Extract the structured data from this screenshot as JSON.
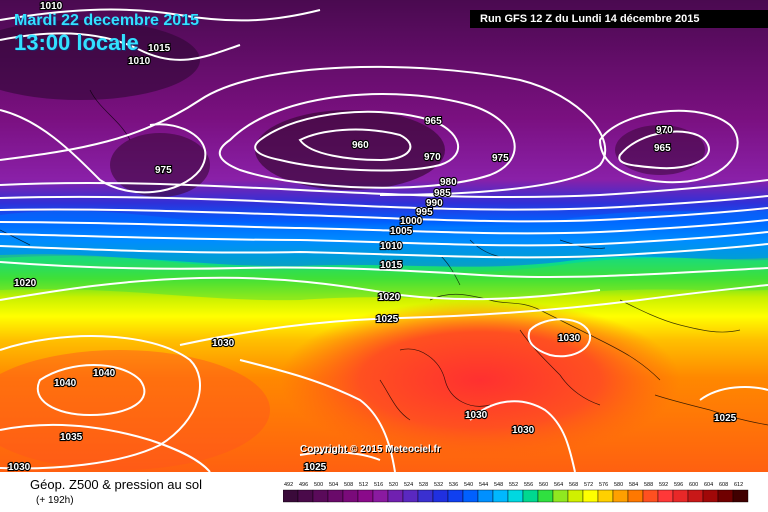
{
  "header": {
    "date": "Mardi 22 decembre 2015",
    "local_time": "13:00 locale",
    "run_info": "Run GFS 12 Z du Lundi 14 décembre 2015"
  },
  "map": {
    "copyright": "Copyright © 2015 Meteociel.fr",
    "isobar_labels": [
      "1010",
      "1015",
      "1010",
      "975",
      "960",
      "965",
      "970",
      "975",
      "980",
      "985",
      "990",
      "995",
      "1000",
      "1005",
      "1010",
      "1015",
      "1020",
      "1025",
      "1030",
      "1020",
      "1040",
      "1040",
      "1035",
      "1030",
      "1030",
      "1030",
      "1030",
      "1025",
      "1025",
      "970",
      "965"
    ]
  },
  "legend": {
    "title": "Géop. Z500 & pression au sol",
    "subtitle": "(+ 192h)",
    "ticks": [
      "492",
      "496",
      "500",
      "504",
      "508",
      "512",
      "516",
      "520",
      "524",
      "528",
      "532",
      "536",
      "540",
      "544",
      "548",
      "552",
      "556",
      "560",
      "564",
      "568",
      "572",
      "576",
      "580",
      "584",
      "588",
      "592",
      "596",
      "600",
      "604",
      "608",
      "612"
    ],
    "colors": [
      "#3a0a3a",
      "#4a0a4a",
      "#5a0a5a",
      "#6a0a6a",
      "#7a0a7a",
      "#8a0a8a",
      "#8a1aa0",
      "#7020b0",
      "#5a28c0",
      "#3a30d0",
      "#2030e0",
      "#1040f0",
      "#0060ff",
      "#0090ff",
      "#00b8ff",
      "#00d8e0",
      "#00d890",
      "#30e040",
      "#90e820",
      "#d0f000",
      "#ffff00",
      "#ffd000",
      "#ffa000",
      "#ff7800",
      "#ff5020",
      "#ff3838",
      "#e82828",
      "#c81818",
      "#a00808",
      "#700000",
      "#400000"
    ]
  },
  "colors": {
    "header_text": "#33e0ff",
    "isobar": "#ffffff"
  }
}
